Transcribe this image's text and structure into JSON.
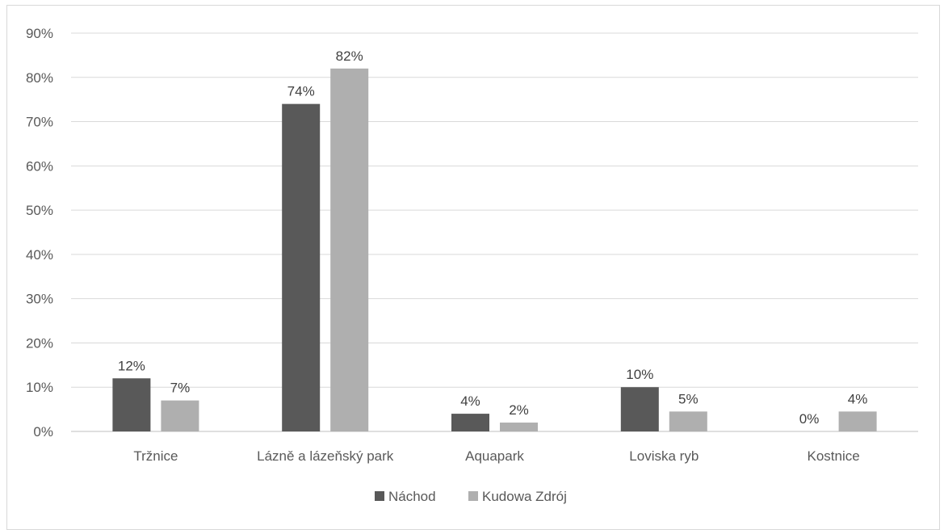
{
  "chart_data": {
    "type": "bar",
    "title": "",
    "xlabel": "",
    "ylabel": "",
    "categories": [
      "Tržnice",
      "Lázně a lázeňský park",
      "Aquapark",
      "Loviska ryb",
      "Kostnice"
    ],
    "series": [
      {
        "name": "Náchod",
        "color": "#595959",
        "values": [
          12,
          74,
          4,
          10,
          0
        ],
        "labels": [
          "12%",
          "74%",
          "4%",
          "10%",
          "0%"
        ]
      },
      {
        "name": "Kudowa Zdrój",
        "color": "#afafaf",
        "values": [
          7,
          82,
          2,
          4.5,
          4.5
        ],
        "labels": [
          "7%",
          "82%",
          "2%",
          "5%",
          "4%"
        ]
      }
    ],
    "ylim": [
      0,
      90
    ],
    "yticks": [
      0,
      10,
      20,
      30,
      40,
      50,
      60,
      70,
      80,
      90
    ],
    "ytick_labels": [
      "0%",
      "10%",
      "20%",
      "30%",
      "40%",
      "50%",
      "60%",
      "70%",
      "80%",
      "90%"
    ],
    "grid": true,
    "legend_position": "bottom"
  }
}
